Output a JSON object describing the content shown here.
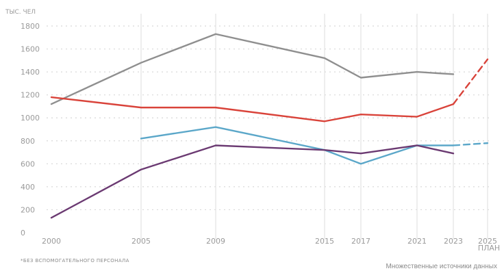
{
  "chart_data": {
    "type": "line",
    "ylabel": "ТЫС. ЧЕЛ",
    "ylim": [
      0,
      1800
    ],
    "yticks": [
      0,
      200,
      400,
      600,
      800,
      1000,
      1200,
      1400,
      1600,
      1800
    ],
    "x_ticks": [
      {
        "year": 2000,
        "label": "2000"
      },
      {
        "year": 2005,
        "label": "2005"
      },
      {
        "year": 2009,
        "label": "2009"
      },
      {
        "year": 2015,
        "label": "2015"
      },
      {
        "year": 2017,
        "label": "2017"
      },
      {
        "year": 2021,
        "label": "2021"
      },
      {
        "year": 2023,
        "label": "2023"
      },
      {
        "year": 2025,
        "label": "2025",
        "sublabel": "ПЛАН"
      }
    ],
    "xlim": [
      2000,
      2025
    ],
    "grid": "dotted horizontal, solid vertical",
    "series": [
      {
        "color": "#8f8f8f",
        "x": [
          2000,
          2005,
          2009,
          2015,
          2017,
          2021,
          2023
        ],
        "y": [
          1120,
          1480,
          1730,
          1520,
          1350,
          1400,
          1380
        ],
        "plan_x": [],
        "plan_y": []
      },
      {
        "color": "#d9433a",
        "x": [
          2000,
          2005,
          2009,
          2015,
          2017,
          2021,
          2023
        ],
        "y": [
          1180,
          1090,
          1090,
          970,
          1030,
          1010,
          1120
        ],
        "plan_x": [
          2023,
          2025
        ],
        "plan_y": [
          1120,
          1510
        ]
      },
      {
        "color": "#5ba7c9",
        "x": [
          2005,
          2009,
          2015,
          2017,
          2021,
          2023
        ],
        "y": [
          820,
          920,
          720,
          600,
          760,
          760
        ],
        "plan_x": [
          2023,
          2025
        ],
        "plan_y": [
          760,
          780
        ]
      },
      {
        "color": "#6b3a72",
        "x": [
          2000,
          2005,
          2009,
          2015,
          2017,
          2021,
          2023
        ],
        "y": [
          130,
          550,
          760,
          720,
          690,
          760,
          690
        ],
        "plan_x": [],
        "plan_y": []
      }
    ]
  },
  "footnote": "*БЕЗ ВСПОМОГАТЕЛЬНОГО ПЕРСОНАЛА",
  "source": "Множественные источники данных"
}
